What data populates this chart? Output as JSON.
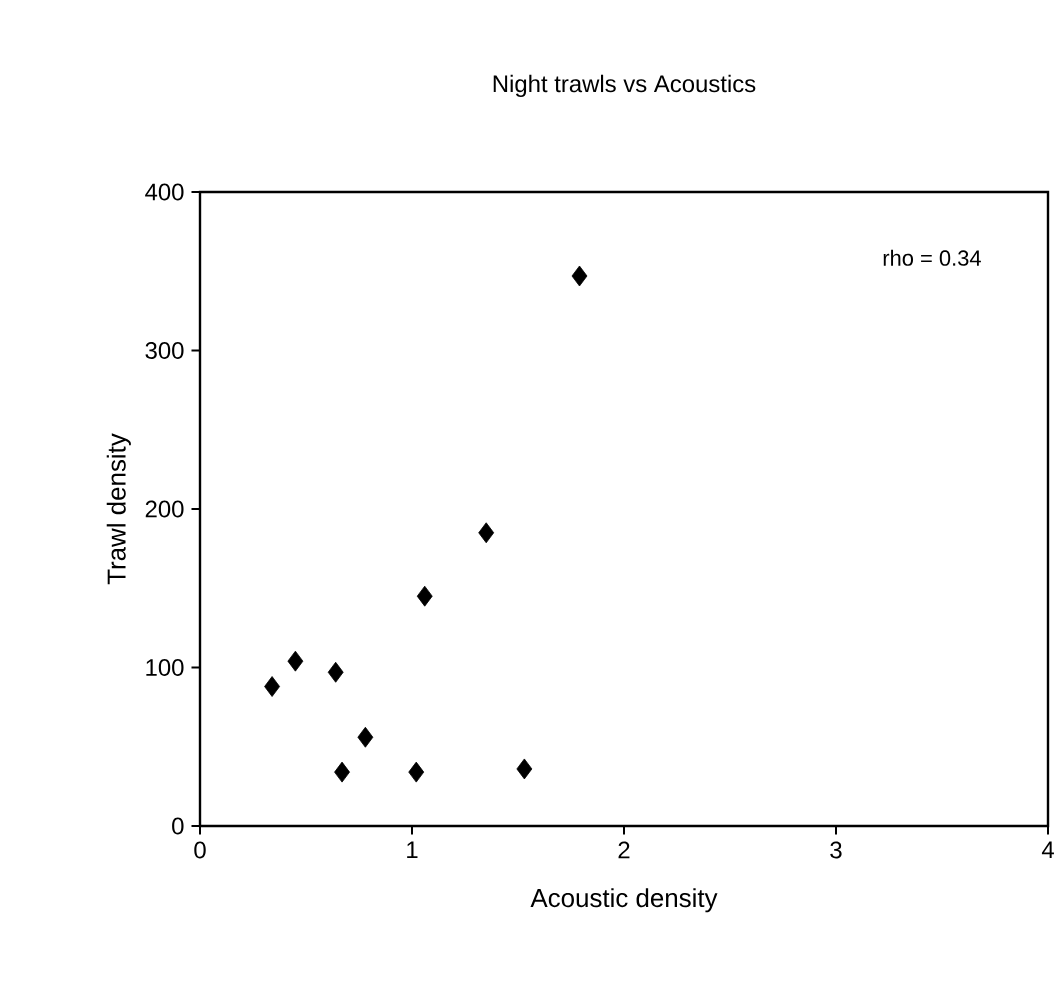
{
  "chart_data": {
    "type": "scatter",
    "title": "Night trawls vs Acoustics",
    "xlabel": "Acoustic density",
    "ylabel": "Trawl density",
    "x": [
      0.34,
      0.45,
      0.64,
      0.67,
      0.78,
      1.02,
      1.06,
      1.35,
      1.53,
      1.79
    ],
    "values": [
      88,
      104,
      97,
      34,
      56,
      34,
      145,
      185,
      36,
      347
    ],
    "color": "#000000",
    "marker": "diamond",
    "xlim": [
      0,
      4
    ],
    "xticks": [
      0,
      1,
      2,
      3,
      4
    ],
    "ylim": [
      0,
      400
    ],
    "yticks": [
      0,
      100,
      200,
      300,
      400
    ],
    "annotations": [
      "rho = 0.34"
    ],
    "grid": false
  }
}
